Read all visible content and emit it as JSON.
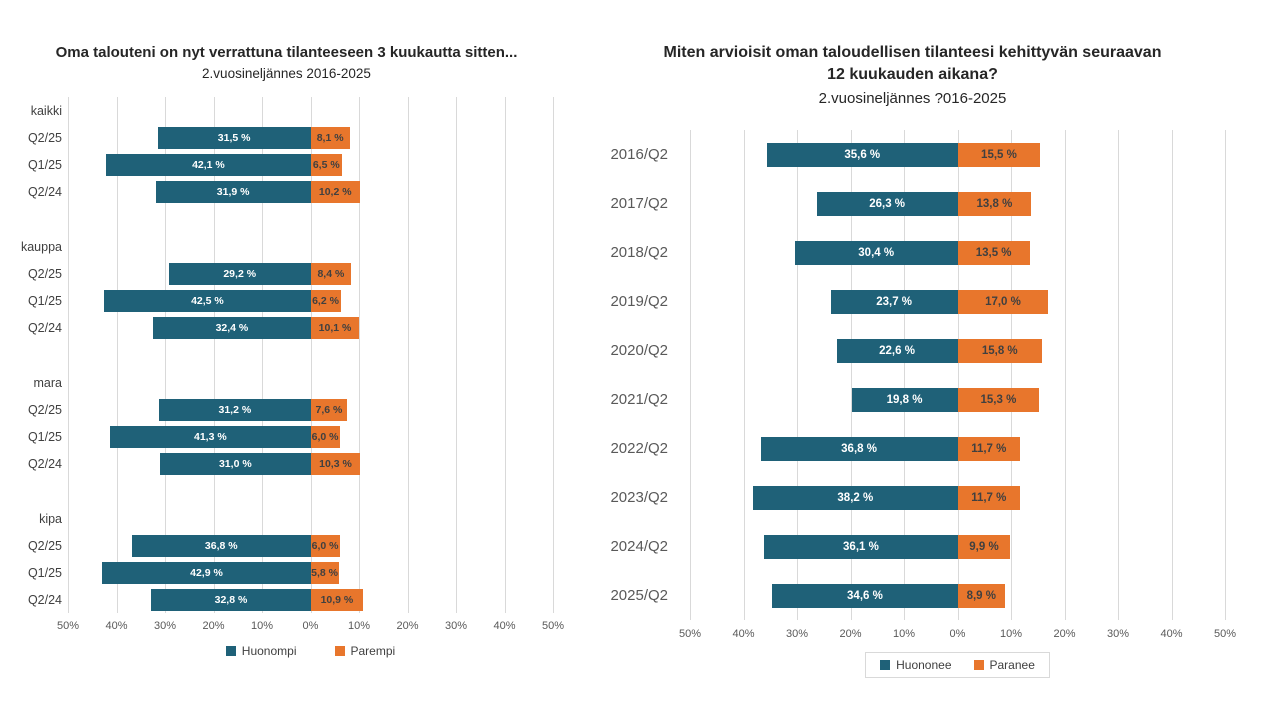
{
  "colors": {
    "background": "#FFFFFF",
    "negative_bar": "#1F6178",
    "positive_bar": "#E8762C",
    "grid_line": "#D9D9D9",
    "bar_label_on_negative": "#FFFFFF",
    "bar_label_on_positive": "#404040",
    "category_text_left": "#404040",
    "category_text_right": "#595959",
    "axis_text": "#595959",
    "title_text": "#262626"
  },
  "chart_data": [
    {
      "type": "bar",
      "variant": "diverging-horizontal",
      "title": "Oma talouteni on nyt verrattuna tilanteeseen 3 kuukautta sitten...",
      "subtitle": "2.vuosineljännes 2016-2025",
      "xlim": [
        -50,
        50
      ],
      "grid": true,
      "legend_position": "bottom",
      "legend_border": false,
      "axis_ticks": [
        "50%",
        "40%",
        "30%",
        "20%",
        "10%",
        "0%",
        "10%",
        "20%",
        "30%",
        "40%",
        "50%"
      ],
      "legend": [
        {
          "name": "Huonompi",
          "color": "#1F6178"
        },
        {
          "name": "Parempi",
          "color": "#E8762C"
        }
      ],
      "groups": [
        {
          "label": "kaikki",
          "rows": [
            {
              "label": "Q2/25",
              "negative": 31.5,
              "positive": 8.1
            },
            {
              "label": "Q1/25",
              "negative": 42.1,
              "positive": 6.5
            },
            {
              "label": "Q2/24",
              "negative": 31.9,
              "positive": 10.2
            }
          ]
        },
        {
          "label": "kauppa",
          "rows": [
            {
              "label": "Q2/25",
              "negative": 29.2,
              "positive": 8.4
            },
            {
              "label": "Q1/25",
              "negative": 42.5,
              "positive": 6.2
            },
            {
              "label": "Q2/24",
              "negative": 32.4,
              "positive": 10.1
            }
          ]
        },
        {
          "label": "mara",
          "rows": [
            {
              "label": "Q2/25",
              "negative": 31.2,
              "positive": 7.6
            },
            {
              "label": "Q1/25",
              "negative": 41.3,
              "positive": 6.0
            },
            {
              "label": "Q2/24",
              "negative": 31.0,
              "positive": 10.3
            }
          ]
        },
        {
          "label": "kipa",
          "rows": [
            {
              "label": "Q2/25",
              "negative": 36.8,
              "positive": 6.0
            },
            {
              "label": "Q1/25",
              "negative": 42.9,
              "positive": 5.8
            },
            {
              "label": "Q2/24",
              "negative": 32.8,
              "positive": 10.9
            }
          ]
        }
      ]
    },
    {
      "type": "bar",
      "variant": "diverging-horizontal",
      "title": "Miten arvioisit oman taloudellisen tilanteesi kehittyvän seuraavan 12 kuukauden aikana?",
      "subtitle": "2.vuosineljännes ?016-2025",
      "xlim": [
        -50,
        50
      ],
      "grid": true,
      "legend_position": "bottom",
      "legend_border": true,
      "axis_ticks": [
        "50%",
        "40%",
        "30%",
        "20%",
        "10%",
        "0%",
        "10%",
        "20%",
        "30%",
        "40%",
        "50%"
      ],
      "legend": [
        {
          "name": "Huononee",
          "color": "#1F6178"
        },
        {
          "name": "Paranee",
          "color": "#E8762C"
        }
      ],
      "rows": [
        {
          "label": "2016/Q2",
          "negative": 35.6,
          "positive": 15.5
        },
        {
          "label": "2017/Q2",
          "negative": 26.3,
          "positive": 13.8
        },
        {
          "label": "2018/Q2",
          "negative": 30.4,
          "positive": 13.5
        },
        {
          "label": "2019/Q2",
          "negative": 23.7,
          "positive": 17.0
        },
        {
          "label": "2020/Q2",
          "negative": 22.6,
          "positive": 15.8
        },
        {
          "label": "2021/Q2",
          "negative": 19.8,
          "positive": 15.3
        },
        {
          "label": "2022/Q2",
          "negative": 36.8,
          "positive": 11.7
        },
        {
          "label": "2023/Q2",
          "negative": 38.2,
          "positive": 11.7
        },
        {
          "label": "2024/Q2",
          "negative": 36.1,
          "positive": 9.9
        },
        {
          "label": "2025/Q2",
          "negative": 34.6,
          "positive": 8.9
        }
      ]
    }
  ]
}
